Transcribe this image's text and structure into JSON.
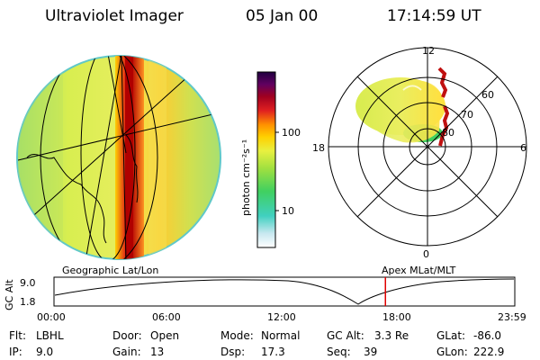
{
  "header": {
    "instrument": "Ultraviolet Imager",
    "date": "05 Jan 00",
    "time": "17:14:59 UT"
  },
  "colorbar": {
    "unit_label": "photon cm⁻²s⁻¹",
    "ticks": [
      "100",
      "10"
    ]
  },
  "polar_plot": {
    "mlt_labels": {
      "top": "12",
      "left": "18",
      "right": "6",
      "bottom": "0"
    },
    "lat_labels": [
      "60",
      "70",
      "80"
    ]
  },
  "timeline": {
    "left_label": "Geographic Lat/Lon",
    "right_label": "Apex MLat/MLT",
    "axis_title": "GC Alt",
    "y_top": "9.0",
    "y_bottom": "1.8",
    "x_ticks": [
      "00:00",
      "06:00",
      "12:00",
      "18:00",
      "23:59"
    ],
    "marker_time": "17:15",
    "marker_color": "#e00000"
  },
  "info": {
    "row1": [
      {
        "key": "Flt:",
        "value": "LBHL"
      },
      {
        "key": "Door:",
        "value": "Open"
      },
      {
        "key": "Mode:",
        "value": "Normal"
      },
      {
        "key": "GC Alt:",
        "value": "3.3 Re"
      },
      {
        "key": "GLat:",
        "value": "-86.0"
      }
    ],
    "row2": [
      {
        "key": "IP:",
        "value": "9.0"
      },
      {
        "key": "Gain:",
        "value": "13"
      },
      {
        "key": "Dsp:",
        "value": "17.3"
      },
      {
        "key": "Seq:",
        "value": "39"
      },
      {
        "key": "GLon:",
        "value": "222.9"
      }
    ]
  }
}
